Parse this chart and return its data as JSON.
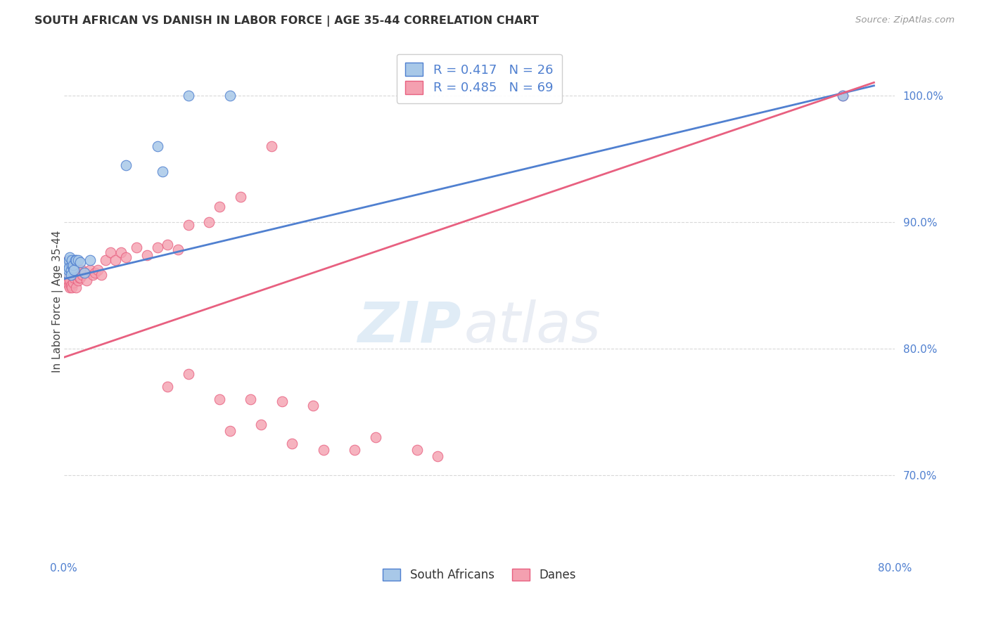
{
  "title": "SOUTH AFRICAN VS DANISH IN LABOR FORCE | AGE 35-44 CORRELATION CHART",
  "source": "Source: ZipAtlas.com",
  "ylabel": "In Labor Force | Age 35-44",
  "ylabel_right_labels": [
    "70.0%",
    "80.0%",
    "90.0%",
    "100.0%"
  ],
  "ylabel_right_positions": [
    0.7,
    0.8,
    0.9,
    1.0
  ],
  "legend_blue_text": "R = 0.417   N = 26",
  "legend_pink_text": "R = 0.485   N = 69",
  "legend_label_blue": "South Africans",
  "legend_label_pink": "Danes",
  "blue_color": "#a8c8e8",
  "pink_color": "#f4a0b0",
  "blue_line_color": "#5080d0",
  "pink_line_color": "#e86080",
  "blue_R": 0.417,
  "pink_R": 0.485,
  "blue_N": 26,
  "pink_N": 69,
  "xmin": 0.0,
  "xmax": 0.8,
  "ymin": 0.635,
  "ymax": 1.04,
  "background_color": "#ffffff",
  "grid_color": "#d8d8d8",
  "sa_x": [
    0.002,
    0.003,
    0.003,
    0.004,
    0.005,
    0.005,
    0.006,
    0.007,
    0.007,
    0.008,
    0.008,
    0.009,
    0.009,
    0.01,
    0.011,
    0.012,
    0.014,
    0.016,
    0.02,
    0.025,
    0.06,
    0.09,
    0.095,
    0.12,
    0.16,
    0.75
  ],
  "sa_y": [
    0.864,
    0.868,
    0.86,
    0.862,
    0.87,
    0.864,
    0.872,
    0.862,
    0.858,
    0.866,
    0.87,
    0.864,
    0.866,
    0.862,
    0.87,
    0.87,
    0.87,
    0.868,
    0.86,
    0.87,
    0.945,
    0.96,
    0.94,
    1.0,
    1.0,
    1.0
  ],
  "da_x": [
    0.001,
    0.001,
    0.002,
    0.002,
    0.003,
    0.003,
    0.004,
    0.004,
    0.005,
    0.005,
    0.006,
    0.006,
    0.006,
    0.007,
    0.007,
    0.008,
    0.008,
    0.009,
    0.009,
    0.01,
    0.01,
    0.011,
    0.011,
    0.012,
    0.013,
    0.013,
    0.014,
    0.015,
    0.015,
    0.016,
    0.017,
    0.018,
    0.02,
    0.022,
    0.025,
    0.028,
    0.03,
    0.033,
    0.036,
    0.04,
    0.045,
    0.05,
    0.055,
    0.06,
    0.07,
    0.08,
    0.09,
    0.1,
    0.11,
    0.12,
    0.14,
    0.15,
    0.17,
    0.2,
    0.1,
    0.12,
    0.15,
    0.18,
    0.21,
    0.24,
    0.16,
    0.19,
    0.22,
    0.25,
    0.28,
    0.3,
    0.34,
    0.36,
    0.75
  ],
  "da_y": [
    0.868,
    0.862,
    0.864,
    0.86,
    0.862,
    0.858,
    0.858,
    0.854,
    0.85,
    0.856,
    0.854,
    0.848,
    0.862,
    0.85,
    0.866,
    0.848,
    0.858,
    0.852,
    0.86,
    0.856,
    0.864,
    0.858,
    0.86,
    0.848,
    0.858,
    0.862,
    0.854,
    0.856,
    0.86,
    0.856,
    0.862,
    0.858,
    0.86,
    0.854,
    0.862,
    0.858,
    0.86,
    0.862,
    0.858,
    0.87,
    0.876,
    0.87,
    0.876,
    0.872,
    0.88,
    0.874,
    0.88,
    0.882,
    0.878,
    0.898,
    0.9,
    0.912,
    0.92,
    0.96,
    0.77,
    0.78,
    0.76,
    0.76,
    0.758,
    0.755,
    0.735,
    0.74,
    0.725,
    0.72,
    0.72,
    0.73,
    0.72,
    0.715,
    1.0
  ]
}
